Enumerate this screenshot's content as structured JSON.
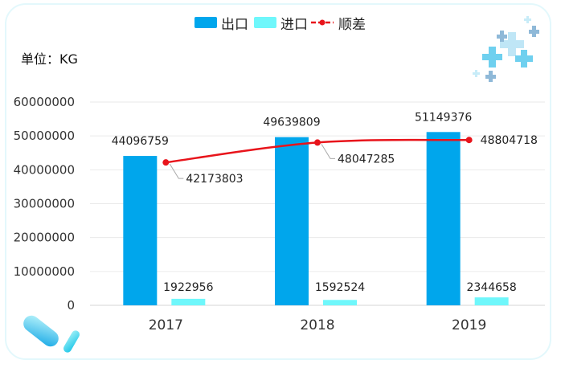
{
  "unit_label": "单位：KG",
  "colors": {
    "export": "#00a6ec",
    "import": "#6ff7fb",
    "balance": "#e8141b",
    "grid": "#eaeaea"
  },
  "chart_data": {
    "type": "bar",
    "categories": [
      "2017",
      "2018",
      "2019"
    ],
    "ylim": [
      0,
      60000000
    ],
    "yticks": [
      "0",
      "10000000",
      "20000000",
      "30000000",
      "40000000",
      "50000000",
      "60000000"
    ],
    "legend_position": "top-center",
    "grid": true,
    "series": [
      {
        "name": "出口",
        "type": "bar",
        "values": [
          44096759,
          49639809,
          51149376
        ],
        "labels": [
          "44096759",
          "49639809",
          "51149376"
        ]
      },
      {
        "name": "进口",
        "type": "bar",
        "values": [
          1922956,
          1592524,
          2344658
        ],
        "labels": [
          "1922956",
          "1592524",
          "2344658"
        ]
      },
      {
        "name": "顺差",
        "type": "line",
        "values": [
          42173803,
          48047285,
          48804718
        ],
        "labels": [
          "42173803",
          "48047285",
          "48804718"
        ]
      }
    ]
  }
}
